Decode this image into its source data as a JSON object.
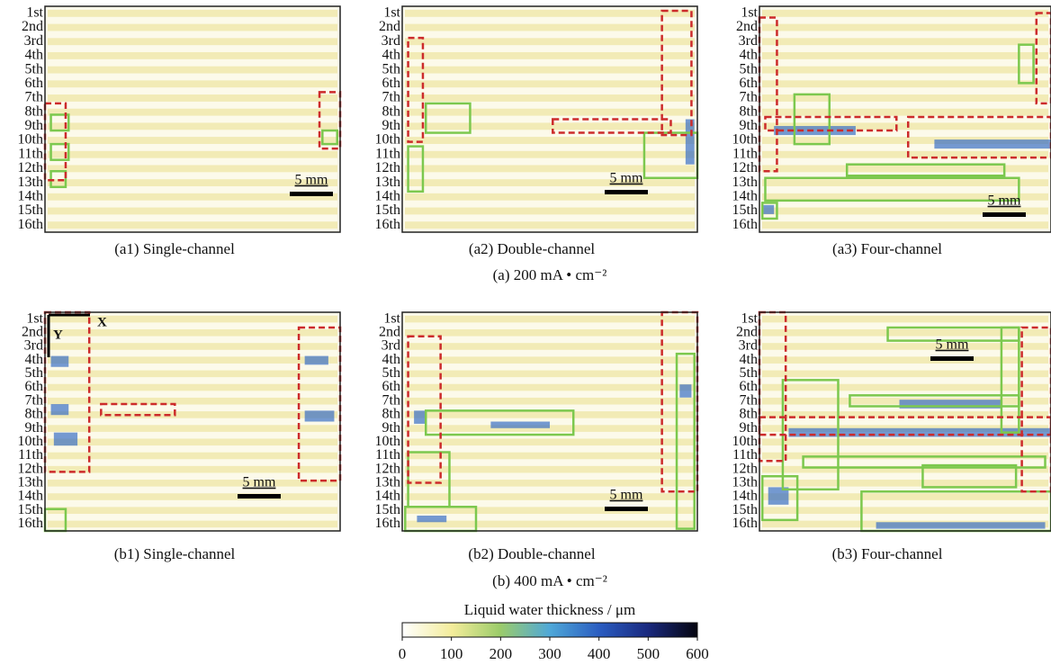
{
  "row_labels": [
    "1st",
    "2nd",
    "3rd",
    "4th",
    "5th",
    "6th",
    "7th",
    "8th",
    "9th",
    "10th",
    "11th",
    "12th",
    "13th",
    "14th",
    "15th",
    "16th"
  ],
  "scale_bar": "5 mm",
  "panels": [
    {
      "caption": "(a1) Single-channel"
    },
    {
      "caption": "(a2) Double-channel"
    },
    {
      "caption": "(a3) Four-channel"
    },
    {
      "caption": "(b1) Single-channel",
      "axis_labels": {
        "x": "X",
        "y": "Y"
      }
    },
    {
      "caption": "(b2) Double-channel"
    },
    {
      "caption": "(b3) Four-channel"
    }
  ],
  "groups": [
    {
      "caption": "(a) 200 mA • cm⁻²"
    },
    {
      "caption": "(b) 400 mA • cm⁻²"
    }
  ],
  "colorbar": {
    "title": "Liquid water thickness / μm",
    "ticks": [
      0,
      100,
      200,
      300,
      400,
      500,
      600
    ]
  }
}
